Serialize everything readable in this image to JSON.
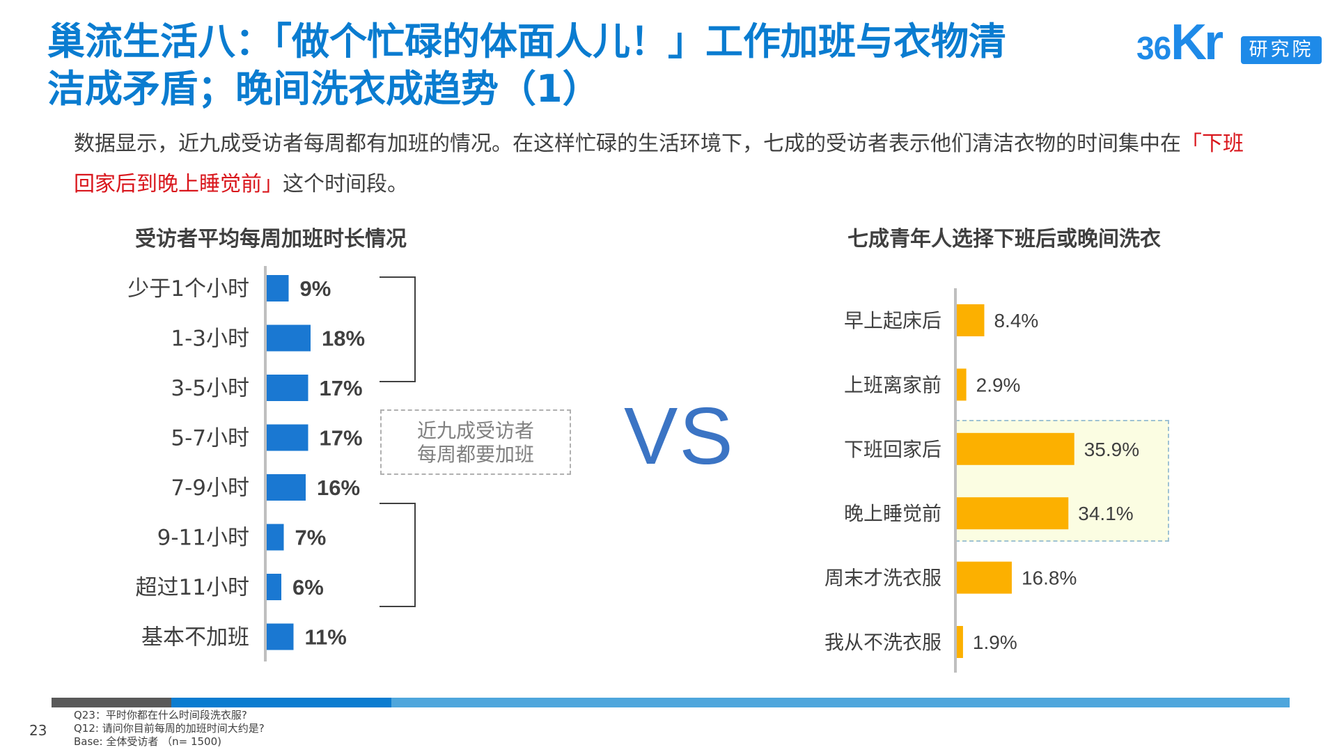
{
  "title": {
    "line1": "巢流生活八：「做个忙碌的体面人儿！」工作加班与衣物清",
    "line2": "洁成矛盾；晚间洗衣成趋势（1）"
  },
  "logo": {
    "brand_36": "36",
    "brand_kr": "Kr",
    "badge": "研究院"
  },
  "intro": {
    "before": "数据显示，近九成受访者每周都有加班的情况。在这样忙碌的生活环境下，七成的受访者表示他们清洁衣物的时间集中在",
    "highlight": "「下班回家后到晚上睡觉前」",
    "after": "这个时间段。"
  },
  "callout": {
    "line1": "近九成受访者",
    "line2": "每周都要加班"
  },
  "vs": "VS",
  "footer": {
    "page_number": "23",
    "notes": [
      "Q23：平时你都在什么时间段洗衣服?",
      "Q12: 请问你目前每周的加班时间大约是?",
      "Base: 全体受访者 （n= 1500)"
    ]
  },
  "colors": {
    "title": "#0a7cd0",
    "left_bars": "#1a78d2",
    "right_bars": "#fcb000",
    "highlight": "#d9161c"
  },
  "chart_data": [
    {
      "type": "bar",
      "orientation": "horizontal",
      "title": "受访者平均每周加班时长情况",
      "categories": [
        "少于1个小时",
        "1-3小时",
        "3-5小时",
        "5-7小时",
        "7-9小时",
        "9-11小时",
        "超过11小时",
        "基本不加班"
      ],
      "values": [
        9,
        18,
        17,
        17,
        16,
        7,
        6,
        11
      ],
      "labels": [
        "9%",
        "18%",
        "17%",
        "17%",
        "16%",
        "7%",
        "6%",
        "11%"
      ],
      "unit": "%",
      "label_style": "bold"
    },
    {
      "type": "bar",
      "orientation": "horizontal",
      "title": "七成青年人选择下班后或晚间洗衣",
      "categories": [
        "早上起床后",
        "上班离家前",
        "下班回家后",
        "晚上睡觉前",
        "周末才洗衣服",
        "我从不洗衣服"
      ],
      "values": [
        8.4,
        2.9,
        35.9,
        34.1,
        16.8,
        1.9
      ],
      "labels": [
        "8.4%",
        "2.9%",
        "35.9%",
        "34.1%",
        "16.8%",
        "1.9%"
      ],
      "unit": "%",
      "label_style": "normal"
    }
  ]
}
